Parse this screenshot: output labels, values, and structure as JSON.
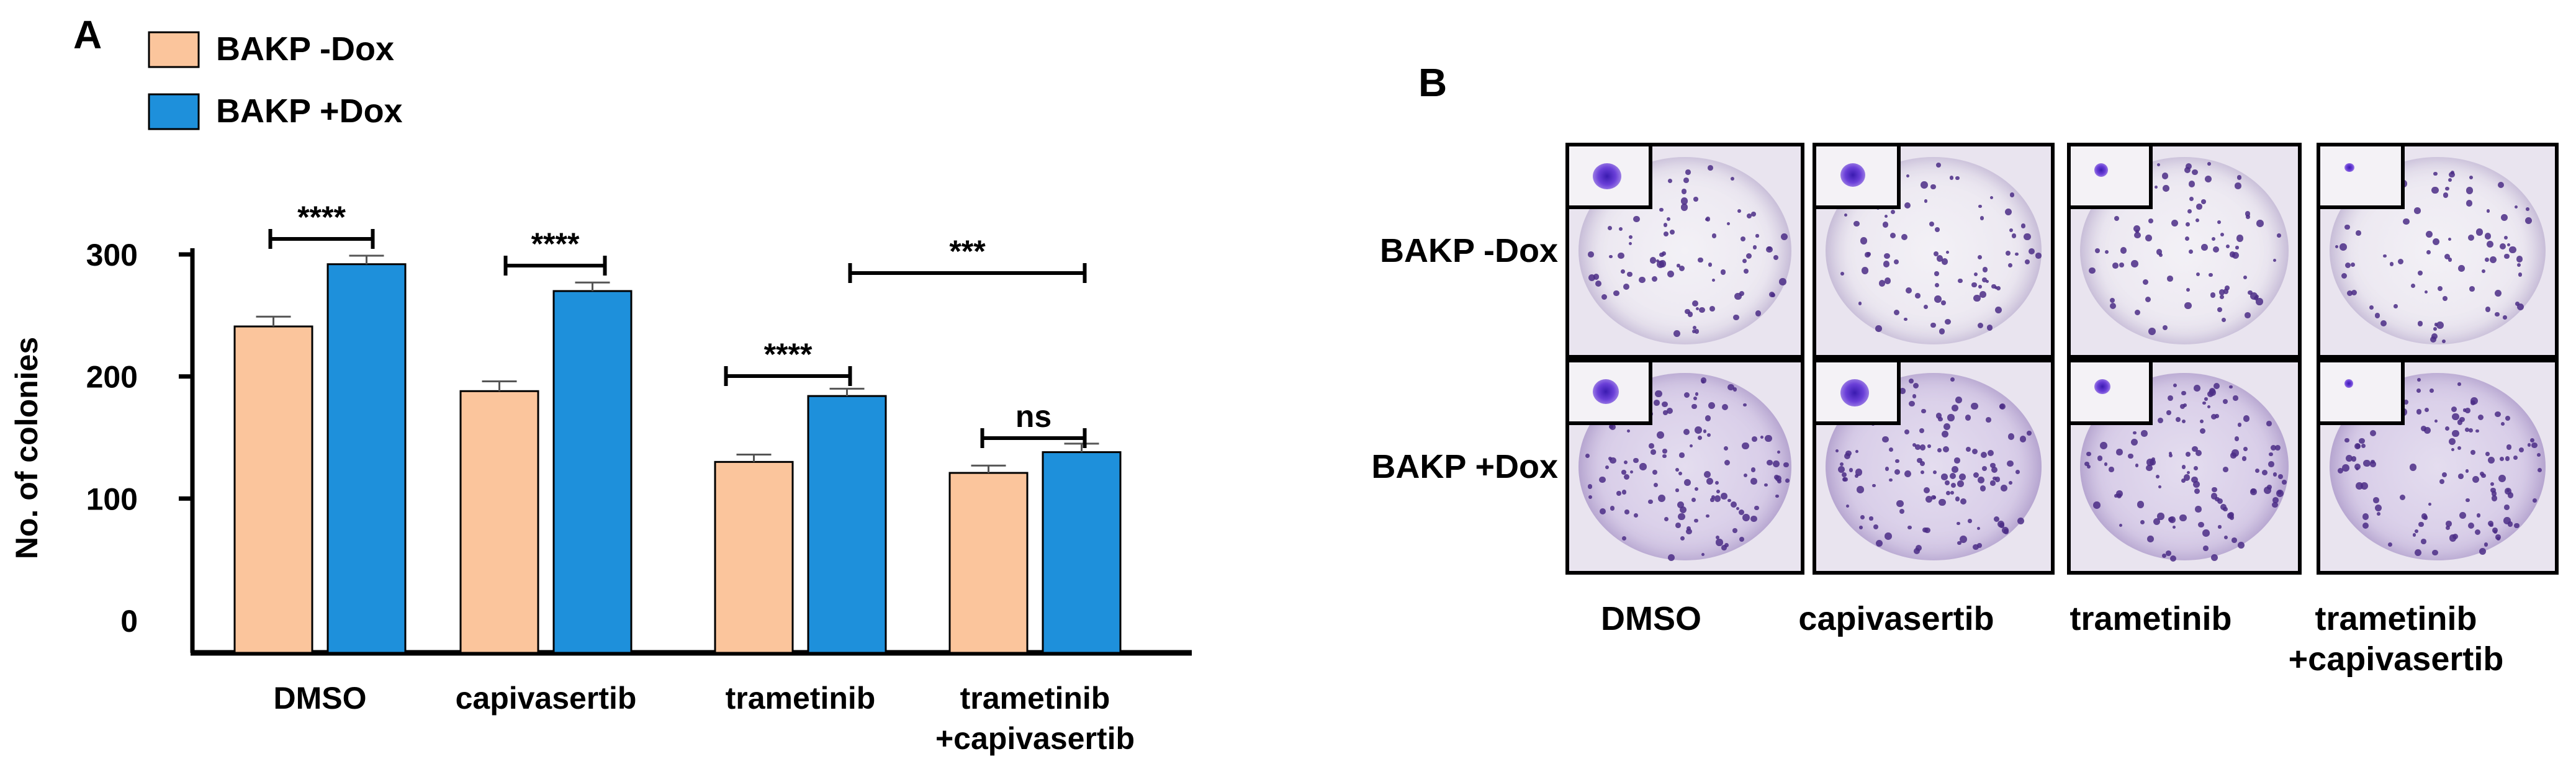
{
  "panel_a": {
    "label": "A",
    "legend": [
      {
        "name": "BAKP -Dox",
        "color": "#FBC59C"
      },
      {
        "name": "BAKP +Dox",
        "color": "#1E90DB"
      }
    ]
  },
  "panel_b": {
    "label": "B",
    "row_labels": [
      "BAKP -Dox",
      "BAKP +Dox"
    ],
    "column_labels": [
      [
        "DMSO"
      ],
      [
        "capivasertib"
      ],
      [
        "trametinib"
      ],
      [
        "trametinib",
        "+capivasertib"
      ]
    ]
  },
  "chart_data": {
    "type": "bar",
    "ylabel": "No. of colonies",
    "xlabel": "",
    "ylim": [
      0,
      300
    ],
    "yticks": [
      "0",
      "100",
      "200",
      "300"
    ],
    "categories": [
      [
        "DMSO"
      ],
      [
        "capivasertib"
      ],
      [
        "trametinib"
      ],
      [
        "trametinib",
        "+capivasertib"
      ]
    ],
    "series": [
      {
        "name": "BAKP -Dox",
        "color": "#FBC59C",
        "values": [
          241,
          188,
          130,
          121
        ],
        "errors": [
          8,
          8,
          6,
          6
        ]
      },
      {
        "name": "BAKP +Dox",
        "color": "#1E90DB",
        "values": [
          292,
          270,
          184,
          138
        ],
        "errors": [
          7,
          7,
          6,
          7
        ]
      }
    ],
    "significance": [
      {
        "label": "****",
        "between": "DMSO -Dox vs +Dox"
      },
      {
        "label": "****",
        "between": "capivasertib -Dox vs +Dox"
      },
      {
        "label": "****",
        "between": "trametinib -Dox vs +Dox"
      },
      {
        "label": "ns",
        "between": "trametinib+capivasertib -Dox vs +Dox"
      },
      {
        "label": "***",
        "between": "trametinib +Dox vs trametinib+capivasertib +Dox"
      }
    ],
    "grid": false,
    "legend": "top-left"
  }
}
